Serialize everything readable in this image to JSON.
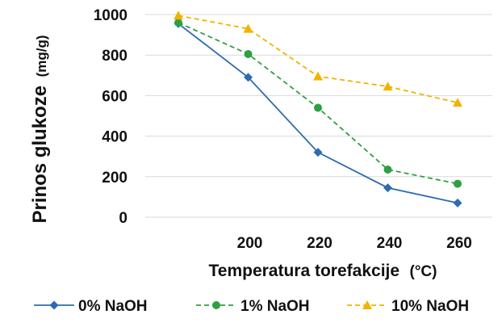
{
  "chart_data": {
    "type": "line",
    "title": "",
    "xlabel": "Temperatura torefakcije",
    "xlabel_unit": "(°C)",
    "ylabel": "Prinos glukoze",
    "ylabel_unit": "(mg/g)",
    "x": [
      180,
      200,
      220,
      240,
      260
    ],
    "x_tick_labels": [
      "",
      "200",
      "220",
      "240",
      "260"
    ],
    "ylim": [
      0,
      1000
    ],
    "y_ticks": [
      0,
      200,
      400,
      600,
      800,
      1000
    ],
    "y_tick_labels": [
      "0",
      "200",
      "400",
      "600",
      "800",
      "1000"
    ],
    "grid": true,
    "legend_position": "bottom",
    "series": [
      {
        "name": "0% NaOH",
        "values": [
          955,
          690,
          320,
          145,
          70
        ],
        "color": "#2e6bb0",
        "marker": "diamond",
        "dash": "solid"
      },
      {
        "name": "1% NaOH",
        "values": [
          960,
          805,
          540,
          235,
          165
        ],
        "color": "#2ea043",
        "marker": "circle",
        "dash": "dashed"
      },
      {
        "name": "10% NaOH",
        "values": [
          995,
          930,
          695,
          645,
          565
        ],
        "color": "#f0b400",
        "marker": "triangle",
        "dash": "dashed"
      }
    ]
  }
}
